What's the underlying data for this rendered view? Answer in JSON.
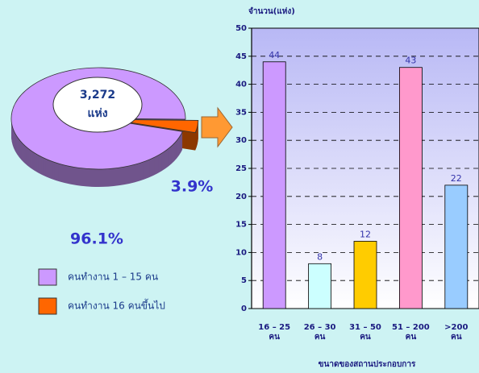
{
  "chart_data": [
    {
      "type": "pie",
      "categories": [
        "คนทำงาน 1 – 15 คน",
        "คนทำงาน 16 คนขึ้นไป"
      ],
      "values": [
        96.1,
        3.9
      ],
      "value_labels": [
        "96.1%",
        "3.9%"
      ],
      "colors": [
        "#cc99ff",
        "#ff6600"
      ],
      "annotations": [
        "3,272",
        "แห่ง"
      ]
    },
    {
      "type": "bar",
      "ylabel": "จำนวน(แห่ง)",
      "xlabel": "ขนาดของสถานประกอบการ",
      "categories": [
        [
          "16 – 25",
          "คน"
        ],
        [
          "26 – 30",
          "คน"
        ],
        [
          "31 – 50",
          "คน"
        ],
        [
          "51 – 200",
          "คน"
        ],
        [
          ">200",
          "คน"
        ]
      ],
      "values": [
        44,
        8,
        12,
        43,
        22
      ],
      "colors": [
        "#cc99ff",
        "#ccffff",
        "#ffcc00",
        "#ff99cc",
        "#99ccff"
      ],
      "ylim": [
        0,
        50
      ],
      "yticks": [
        0,
        5,
        10,
        15,
        20,
        25,
        30,
        35,
        40,
        45,
        50
      ],
      "grid": true
    }
  ]
}
